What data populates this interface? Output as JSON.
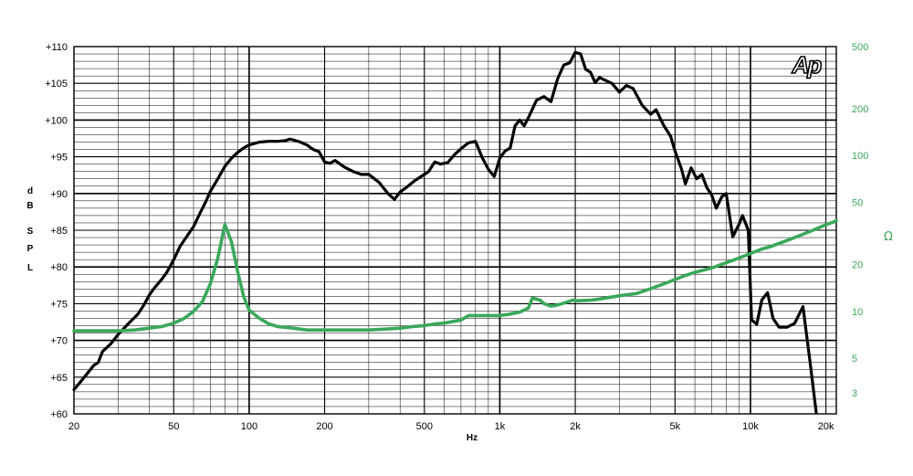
{
  "chart_data": {
    "type": "line",
    "xlabel": "Hz",
    "x_scale": "log",
    "xlim": [
      20,
      22000
    ],
    "x_ticks": [
      {
        "v": 20,
        "label": "20"
      },
      {
        "v": 50,
        "label": "50"
      },
      {
        "v": 100,
        "label": "100"
      },
      {
        "v": 200,
        "label": "200"
      },
      {
        "v": 500,
        "label": "500"
      },
      {
        "v": 1000,
        "label": "1k"
      },
      {
        "v": 2000,
        "label": "2k"
      },
      {
        "v": 5000,
        "label": "5k"
      },
      {
        "v": 10000,
        "label": "10k"
      },
      {
        "v": 20000,
        "label": "20k"
      }
    ],
    "y_left": {
      "label_chars": [
        "d",
        "B",
        "S",
        "P",
        "L"
      ],
      "lim": [
        60,
        110
      ],
      "ticks": [
        {
          "v": 110,
          "label": "+110"
        },
        {
          "v": 105,
          "label": "+105"
        },
        {
          "v": 100,
          "label": "+100"
        },
        {
          "v": 95,
          "label": "+95"
        },
        {
          "v": 90,
          "label": "+90"
        },
        {
          "v": 85,
          "label": "+85"
        },
        {
          "v": 80,
          "label": "+80"
        },
        {
          "v": 75,
          "label": "+75"
        },
        {
          "v": 70,
          "label": "+70"
        },
        {
          "v": 65,
          "label": "+65"
        },
        {
          "v": 60,
          "label": "+60"
        }
      ]
    },
    "y_right": {
      "label": "Ω",
      "scale": "log",
      "lim": [
        2.2,
        500
      ],
      "ticks": [
        {
          "v": 500,
          "label": "500"
        },
        {
          "v": 200,
          "label": "200"
        },
        {
          "v": 100,
          "label": "100"
        },
        {
          "v": 50,
          "label": "50"
        },
        {
          "v": 20,
          "label": "20"
        },
        {
          "v": 10,
          "label": "10"
        },
        {
          "v": 5,
          "label": "5"
        },
        {
          "v": 3,
          "label": "3"
        }
      ]
    },
    "logo": "Ap",
    "grid": true,
    "series": [
      {
        "axis": "left",
        "color": "#000000",
        "points": [
          [
            20,
            63.3
          ],
          [
            22,
            65
          ],
          [
            24,
            66.6
          ],
          [
            25,
            67
          ],
          [
            26,
            68.5
          ],
          [
            28,
            69.5
          ],
          [
            30,
            70.8
          ],
          [
            33,
            72.3
          ],
          [
            36,
            73.6
          ],
          [
            38,
            74.8
          ],
          [
            40,
            76.2
          ],
          [
            42,
            77.2
          ],
          [
            45,
            78.4
          ],
          [
            47,
            79.3
          ],
          [
            50,
            81
          ],
          [
            53,
            82.8
          ],
          [
            56,
            84
          ],
          [
            60,
            85.5
          ],
          [
            63,
            87
          ],
          [
            67,
            88.8
          ],
          [
            70,
            90.3
          ],
          [
            75,
            92
          ],
          [
            80,
            93.7
          ],
          [
            85,
            94.8
          ],
          [
            90,
            95.6
          ],
          [
            95,
            96.2
          ],
          [
            100,
            96.6
          ],
          [
            110,
            97
          ],
          [
            120,
            97.1
          ],
          [
            130,
            97.1
          ],
          [
            140,
            97.2
          ],
          [
            145,
            97.4
          ],
          [
            150,
            97.3
          ],
          [
            160,
            97
          ],
          [
            170,
            96.6
          ],
          [
            180,
            96
          ],
          [
            190,
            95.7
          ],
          [
            200,
            94.3
          ],
          [
            210,
            94.1
          ],
          [
            220,
            94.5
          ],
          [
            240,
            93.6
          ],
          [
            260,
            93
          ],
          [
            280,
            92.6
          ],
          [
            300,
            92.6
          ],
          [
            330,
            91.5
          ],
          [
            360,
            89.9
          ],
          [
            380,
            89.2
          ],
          [
            400,
            90.2
          ],
          [
            430,
            91
          ],
          [
            460,
            91.8
          ],
          [
            500,
            92.6
          ],
          [
            520,
            93
          ],
          [
            550,
            94.3
          ],
          [
            580,
            94
          ],
          [
            620,
            94.2
          ],
          [
            660,
            95.3
          ],
          [
            700,
            96.1
          ],
          [
            750,
            96.9
          ],
          [
            800,
            97.1
          ],
          [
            850,
            94.9
          ],
          [
            900,
            93.3
          ],
          [
            950,
            92.3
          ],
          [
            1000,
            94.8
          ],
          [
            1050,
            95.8
          ],
          [
            1100,
            96.2
          ],
          [
            1150,
            99.2
          ],
          [
            1200,
            100
          ],
          [
            1250,
            99.2
          ],
          [
            1300,
            100.3
          ],
          [
            1400,
            102.7
          ],
          [
            1500,
            103.2
          ],
          [
            1600,
            102.5
          ],
          [
            1700,
            105.6
          ],
          [
            1800,
            107.5
          ],
          [
            1900,
            107.8
          ],
          [
            2000,
            109.2
          ],
          [
            2100,
            109
          ],
          [
            2200,
            106.9
          ],
          [
            2300,
            106.5
          ],
          [
            2400,
            105.1
          ],
          [
            2500,
            105.8
          ],
          [
            2600,
            105.5
          ],
          [
            2800,
            105
          ],
          [
            3000,
            103.8
          ],
          [
            3200,
            104.7
          ],
          [
            3400,
            104.3
          ],
          [
            3700,
            102
          ],
          [
            4000,
            100.8
          ],
          [
            4200,
            101.4
          ],
          [
            4500,
            99.3
          ],
          [
            4800,
            97.8
          ],
          [
            5000,
            95.8
          ],
          [
            5300,
            93.4
          ],
          [
            5500,
            91.3
          ],
          [
            5800,
            93.5
          ],
          [
            6100,
            92
          ],
          [
            6400,
            92.6
          ],
          [
            6700,
            90.8
          ],
          [
            7000,
            89.8
          ],
          [
            7300,
            88
          ],
          [
            7700,
            89.6
          ],
          [
            8000,
            90
          ],
          [
            8500,
            84.1
          ],
          [
            9000,
            85.8
          ],
          [
            9300,
            87
          ],
          [
            9800,
            85
          ],
          [
            10100,
            72.8
          ],
          [
            10600,
            72.2
          ],
          [
            11100,
            75.5
          ],
          [
            11700,
            76.5
          ],
          [
            12300,
            73
          ],
          [
            13000,
            71.8
          ],
          [
            14000,
            71.8
          ],
          [
            15000,
            72.3
          ],
          [
            16200,
            74.6
          ],
          [
            17300,
            67
          ],
          [
            18300,
            60.2
          ]
        ]
      },
      {
        "axis": "right",
        "color": "#3aa85a",
        "points": [
          [
            20,
            7.5
          ],
          [
            25,
            7.5
          ],
          [
            30,
            7.5
          ],
          [
            35,
            7.6
          ],
          [
            40,
            7.8
          ],
          [
            45,
            8
          ],
          [
            50,
            8.4
          ],
          [
            55,
            9
          ],
          [
            60,
            10
          ],
          [
            65,
            11.5
          ],
          [
            70,
            15
          ],
          [
            75,
            22
          ],
          [
            80,
            36
          ],
          [
            85,
            28
          ],
          [
            90,
            18
          ],
          [
            95,
            12.5
          ],
          [
            100,
            10.2
          ],
          [
            110,
            9
          ],
          [
            120,
            8.3
          ],
          [
            130,
            8
          ],
          [
            150,
            7.8
          ],
          [
            170,
            7.6
          ],
          [
            200,
            7.6
          ],
          [
            250,
            7.6
          ],
          [
            300,
            7.6
          ],
          [
            350,
            7.7
          ],
          [
            400,
            7.8
          ],
          [
            450,
            8
          ],
          [
            500,
            8.1
          ],
          [
            550,
            8.3
          ],
          [
            600,
            8.4
          ],
          [
            700,
            8.8
          ],
          [
            750,
            9.4
          ],
          [
            800,
            9.4
          ],
          [
            900,
            9.4
          ],
          [
            1000,
            9.4
          ],
          [
            1100,
            9.6
          ],
          [
            1200,
            9.9
          ],
          [
            1300,
            10.5
          ],
          [
            1350,
            12.2
          ],
          [
            1450,
            11.8
          ],
          [
            1500,
            11.2
          ],
          [
            1600,
            10.8
          ],
          [
            1700,
            11
          ],
          [
            1800,
            11.3
          ],
          [
            1950,
            11.8
          ],
          [
            2050,
            11.7
          ],
          [
            2300,
            11.8
          ],
          [
            2500,
            12
          ],
          [
            3000,
            12.6
          ],
          [
            3500,
            13
          ],
          [
            4000,
            14
          ],
          [
            4500,
            15
          ],
          [
            5000,
            16
          ],
          [
            5500,
            17
          ],
          [
            6000,
            17.8
          ],
          [
            7000,
            19
          ],
          [
            8000,
            20.5
          ],
          [
            9000,
            22
          ],
          [
            10000,
            23.5
          ],
          [
            11000,
            25
          ],
          [
            12000,
            26
          ],
          [
            14000,
            28.5
          ],
          [
            16000,
            31
          ],
          [
            18000,
            33.5
          ],
          [
            20000,
            36
          ],
          [
            22000,
            38
          ]
        ]
      }
    ]
  }
}
